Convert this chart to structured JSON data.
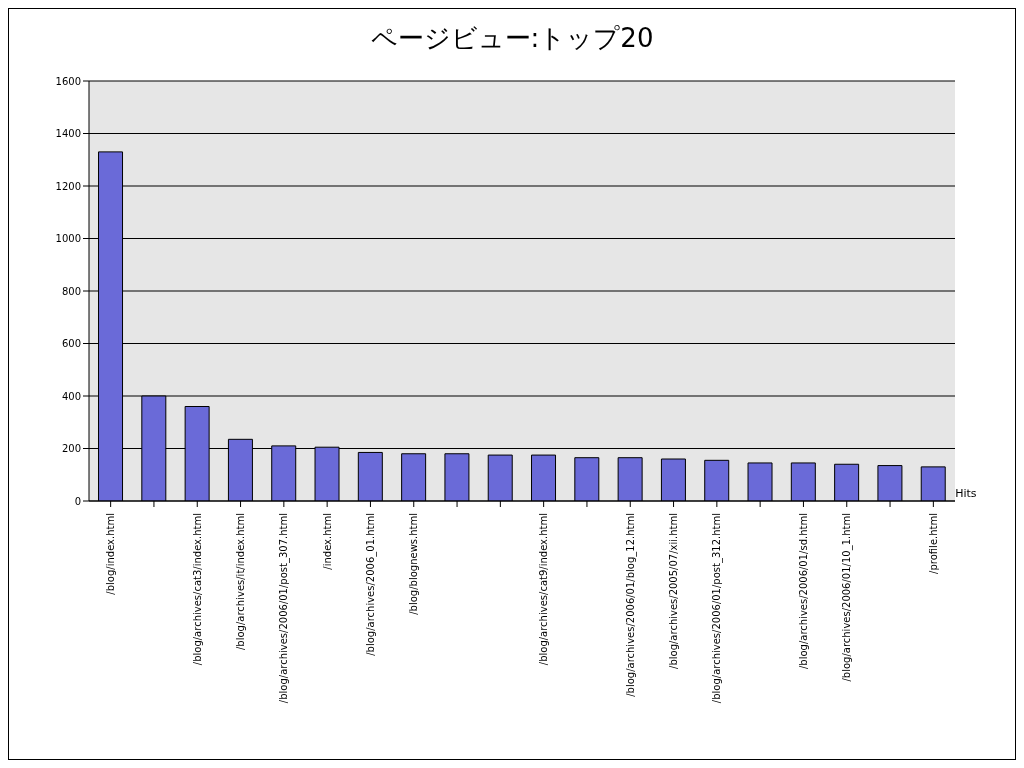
{
  "chart_data": {
    "type": "bar",
    "title": "ページビュー:トップ20",
    "categories": [
      "/blog/index.html",
      null,
      "/blog/archives/cat3/index.html",
      "/blog/archives/it/index.html",
      "/blog/archives/2006/01/post_307.html",
      "/index.html",
      "/blog/archives/2006_01.html",
      "/blog/blognews.html",
      null,
      null,
      "/blog/archives/cat9/index.html",
      null,
      "/blog/archives/2006/01/blog_12.html",
      "/blog/archives/2005/07/xii.html",
      "/blog/archives/2006/01/post_312.html",
      null,
      "/blog/archives/2006/01/sd.html",
      "/blog/archives/2006/01/10_1.html",
      null,
      "/profile.html"
    ],
    "series": [
      {
        "name": "Hits",
        "color": "#6a6ad8",
        "values": [
          1330,
          400,
          360,
          235,
          210,
          205,
          185,
          180,
          180,
          175,
          175,
          165,
          165,
          160,
          155,
          145,
          145,
          140,
          135,
          130
        ]
      }
    ],
    "ylim": [
      0,
      1600
    ],
    "yticks": [
      0,
      200,
      400,
      600,
      800,
      1000,
      1200,
      1400,
      1600
    ],
    "grid": "y"
  }
}
